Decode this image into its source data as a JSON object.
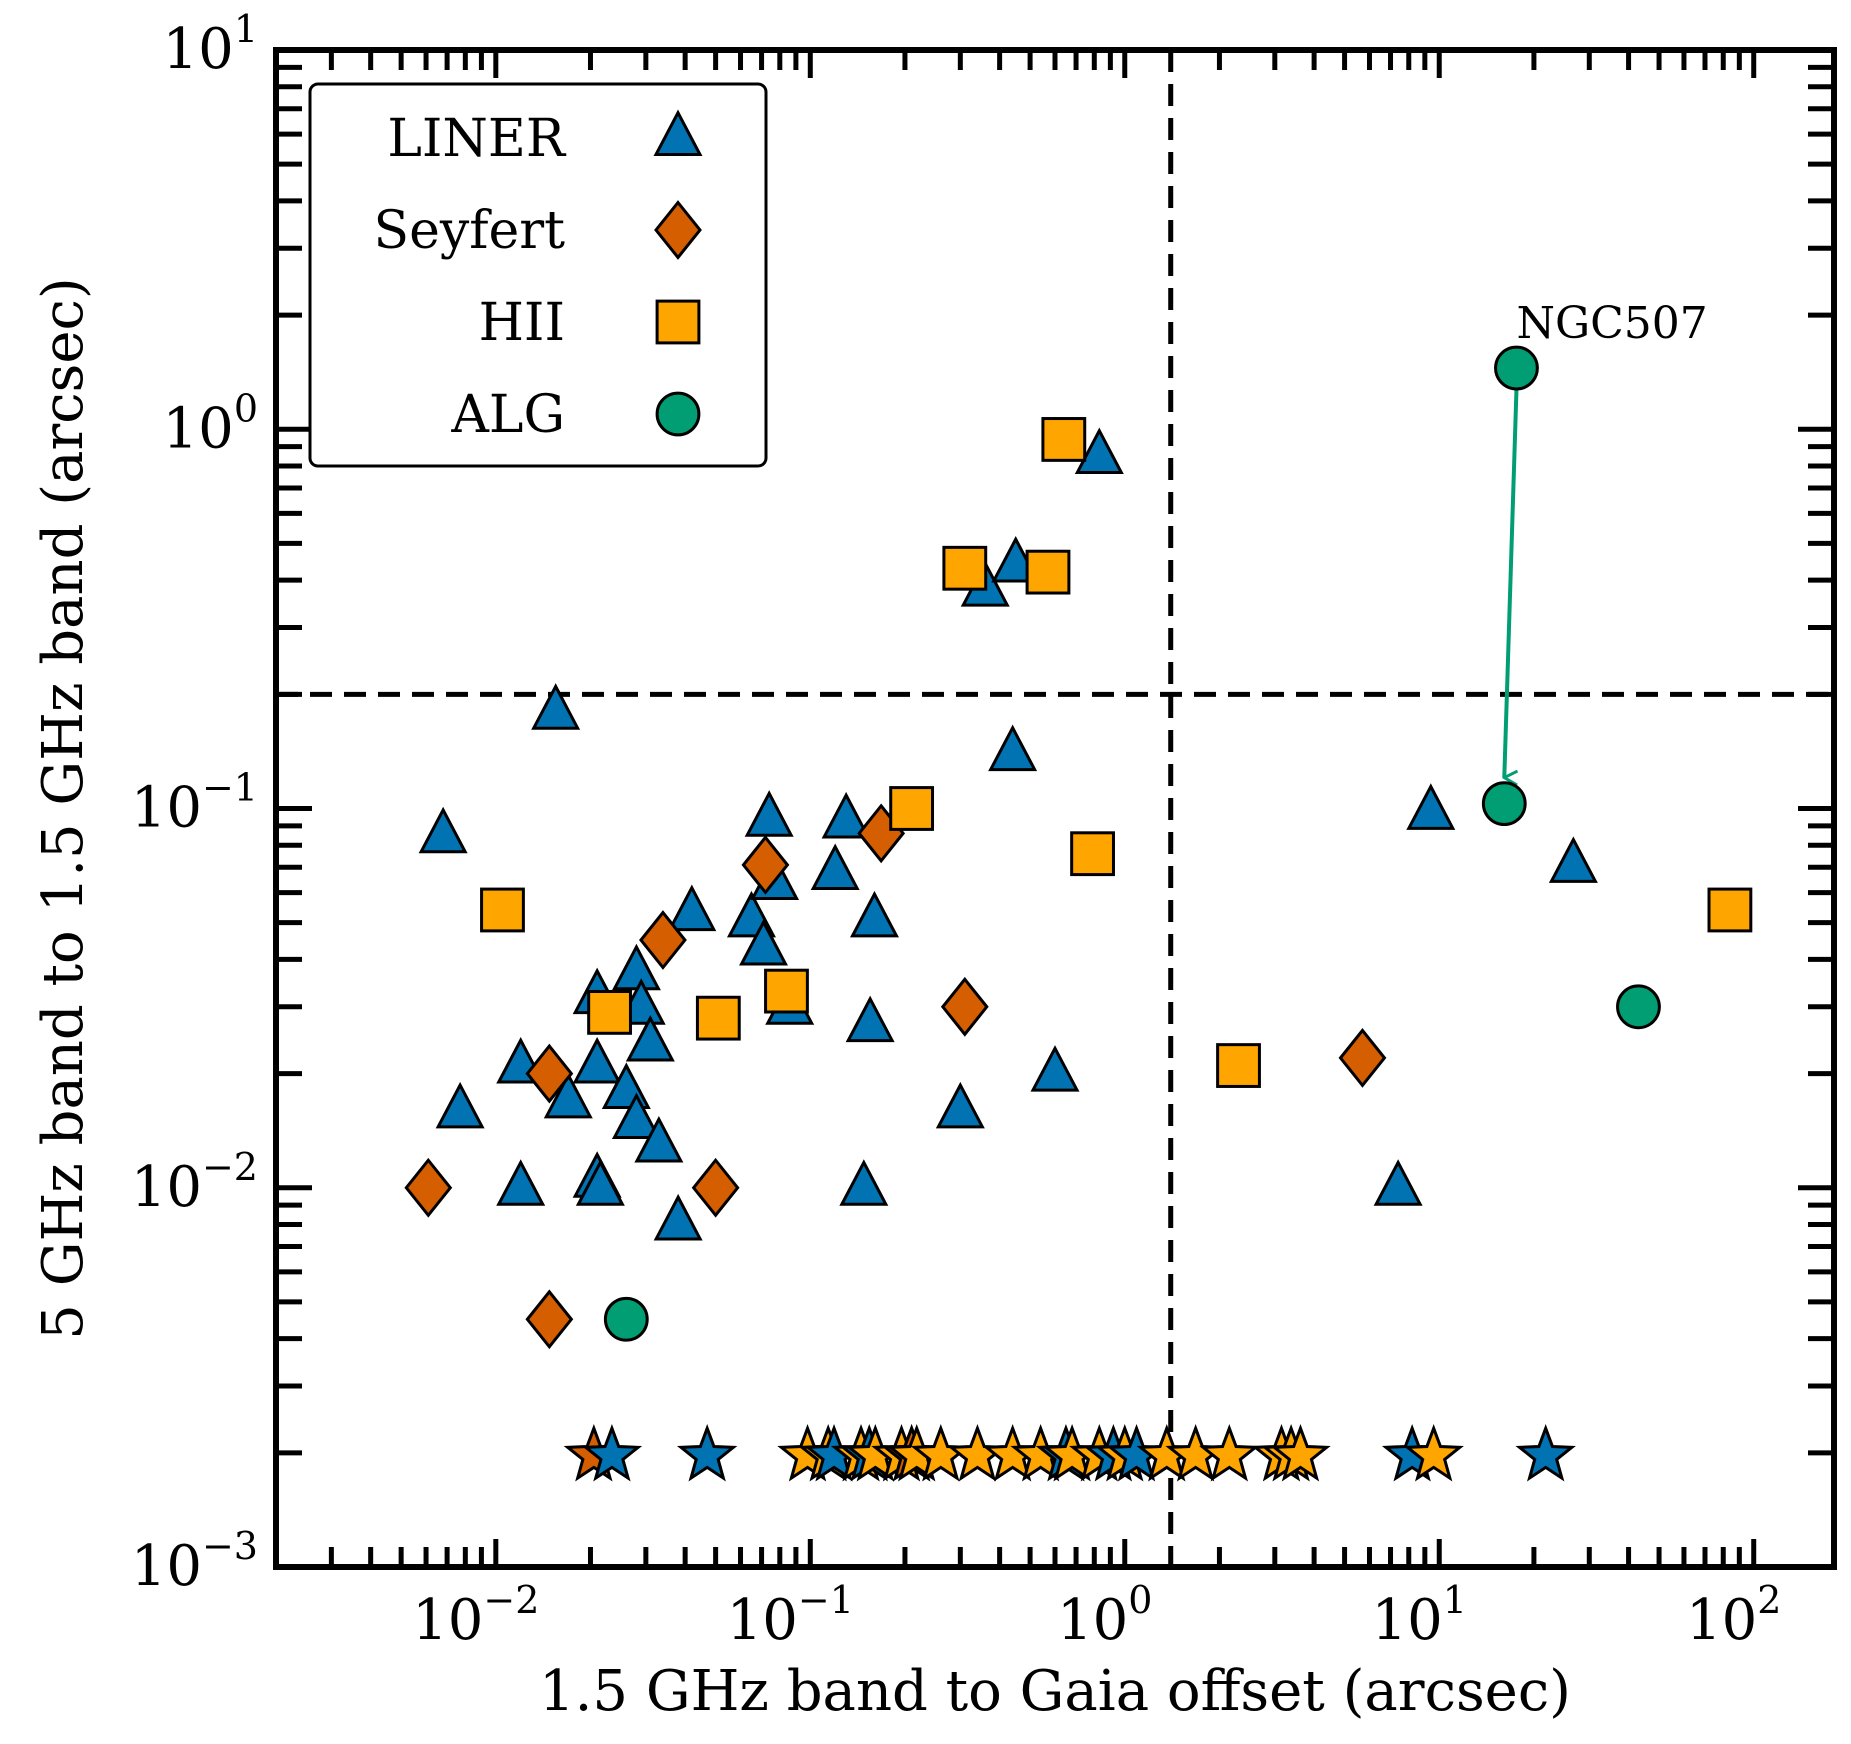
{
  "chart_data": {
    "type": "scatter",
    "title": "",
    "xlabel": "1.5 GHz band to Gaia offset (arcsec)",
    "ylabel": "5 GHz band to 1.5 GHz band (arcsec)",
    "xscale": "log",
    "yscale": "log",
    "xlim": [
      0.002,
      180
    ],
    "ylim": [
      0.001,
      10
    ],
    "xticks": [
      {
        "base": "10",
        "exp": "−2",
        "value": 0.01
      },
      {
        "base": "10",
        "exp": "−1",
        "value": 0.1
      },
      {
        "base": "10",
        "exp": "0",
        "value": 1
      },
      {
        "base": "10",
        "exp": "1",
        "value": 10
      },
      {
        "base": "10",
        "exp": "2",
        "value": 100
      }
    ],
    "yticks": [
      {
        "base": "10",
        "exp": "−3",
        "value": 0.001
      },
      {
        "base": "10",
        "exp": "−2",
        "value": 0.01
      },
      {
        "base": "10",
        "exp": "−1",
        "value": 0.1
      },
      {
        "base": "10",
        "exp": "0",
        "value": 1
      },
      {
        "base": "10",
        "exp": "1",
        "value": 10
      }
    ],
    "grid": false,
    "legend_position": "top-left",
    "reference_lines": {
      "vertical_x": 1.4,
      "horizontal_y": 0.2,
      "style": "dashed"
    },
    "series": [
      {
        "name": "LINER",
        "marker": "triangle",
        "color": "#0173b2",
        "points": [
          [
            0.0155,
            0.18
          ],
          [
            0.0068,
            0.085
          ],
          [
            0.44,
            0.14
          ],
          [
            0.074,
            0.094
          ],
          [
            0.13,
            0.093
          ],
          [
            0.12,
            0.068
          ],
          [
            0.16,
            0.051
          ],
          [
            0.042,
            0.053
          ],
          [
            0.065,
            0.051
          ],
          [
            0.071,
            0.043
          ],
          [
            0.077,
            0.064
          ],
          [
            0.028,
            0.037
          ],
          [
            0.021,
            0.032
          ],
          [
            0.029,
            0.03
          ],
          [
            0.031,
            0.024
          ],
          [
            0.012,
            0.021
          ],
          [
            0.021,
            0.021
          ],
          [
            0.017,
            0.017
          ],
          [
            0.026,
            0.018
          ],
          [
            0.0077,
            0.016
          ],
          [
            0.028,
            0.015
          ],
          [
            0.033,
            0.013
          ],
          [
            0.086,
            0.03
          ],
          [
            0.155,
            0.027
          ],
          [
            0.3,
            0.016
          ],
          [
            0.6,
            0.02
          ],
          [
            0.012,
            0.01
          ],
          [
            0.021,
            0.0105
          ],
          [
            0.0215,
            0.01
          ],
          [
            0.148,
            0.01
          ],
          [
            0.038,
            0.0081
          ],
          [
            0.36,
            0.38
          ],
          [
            0.45,
            0.44
          ],
          [
            0.83,
            0.85
          ],
          [
            9.4,
            0.098
          ],
          [
            26.7,
            0.071
          ],
          [
            7.4,
            0.01
          ]
        ]
      },
      {
        "name": "Seyfert",
        "marker": "diamond",
        "color": "#d55e00",
        "points": [
          [
            0.0061,
            0.01
          ],
          [
            0.0148,
            0.0045
          ],
          [
            0.0148,
            0.02
          ],
          [
            0.034,
            0.045
          ],
          [
            0.05,
            0.01
          ],
          [
            0.072,
            0.071
          ],
          [
            0.168,
            0.086
          ],
          [
            0.31,
            0.03
          ],
          [
            5.7,
            0.022
          ]
        ]
      },
      {
        "name": "HII",
        "marker": "square",
        "color": "#ffa500",
        "points": [
          [
            0.0105,
            0.054
          ],
          [
            0.023,
            0.029
          ],
          [
            0.051,
            0.028
          ],
          [
            0.084,
            0.033
          ],
          [
            0.21,
            0.1
          ],
          [
            0.79,
            0.076
          ],
          [
            0.31,
            0.43
          ],
          [
            0.57,
            0.42
          ],
          [
            0.64,
            0.94
          ],
          [
            2.3,
            0.021
          ],
          [
            84,
            0.054
          ]
        ]
      },
      {
        "name": "ALG",
        "marker": "circle",
        "color": "#029e73",
        "points": [
          [
            0.026,
            0.0045
          ],
          [
            17.6,
            1.45
          ],
          [
            16.1,
            0.103
          ],
          [
            43,
            0.03
          ]
        ]
      }
    ],
    "upper_limit_stars": {
      "y": 0.002,
      "groups": [
        {
          "name": "LINER",
          "color": "#0173b2",
          "x": [
            0.0234,
            0.047,
            0.119,
            0.154,
            0.21,
            0.65,
            0.92,
            1.09,
            8.2,
            21.8
          ]
        },
        {
          "name": "Seyfert",
          "color": "#d55e00",
          "x": [
            0.0205,
            0.21
          ]
        },
        {
          "name": "HII",
          "color": "#ffa500",
          "x": [
            0.098,
            0.114,
            0.145,
            0.161,
            0.195,
            0.218,
            0.26,
            0.34,
            0.44,
            0.54,
            0.68,
            0.83,
            1.0,
            1.36,
            1.68,
            2.15,
            3.15,
            3.38,
            3.62,
            9.6
          ]
        }
      ]
    },
    "annotation": {
      "text": "NGC507",
      "from": [
        17.6,
        1.45
      ],
      "to": [
        16.1,
        0.103
      ],
      "color": "#029e73"
    }
  }
}
